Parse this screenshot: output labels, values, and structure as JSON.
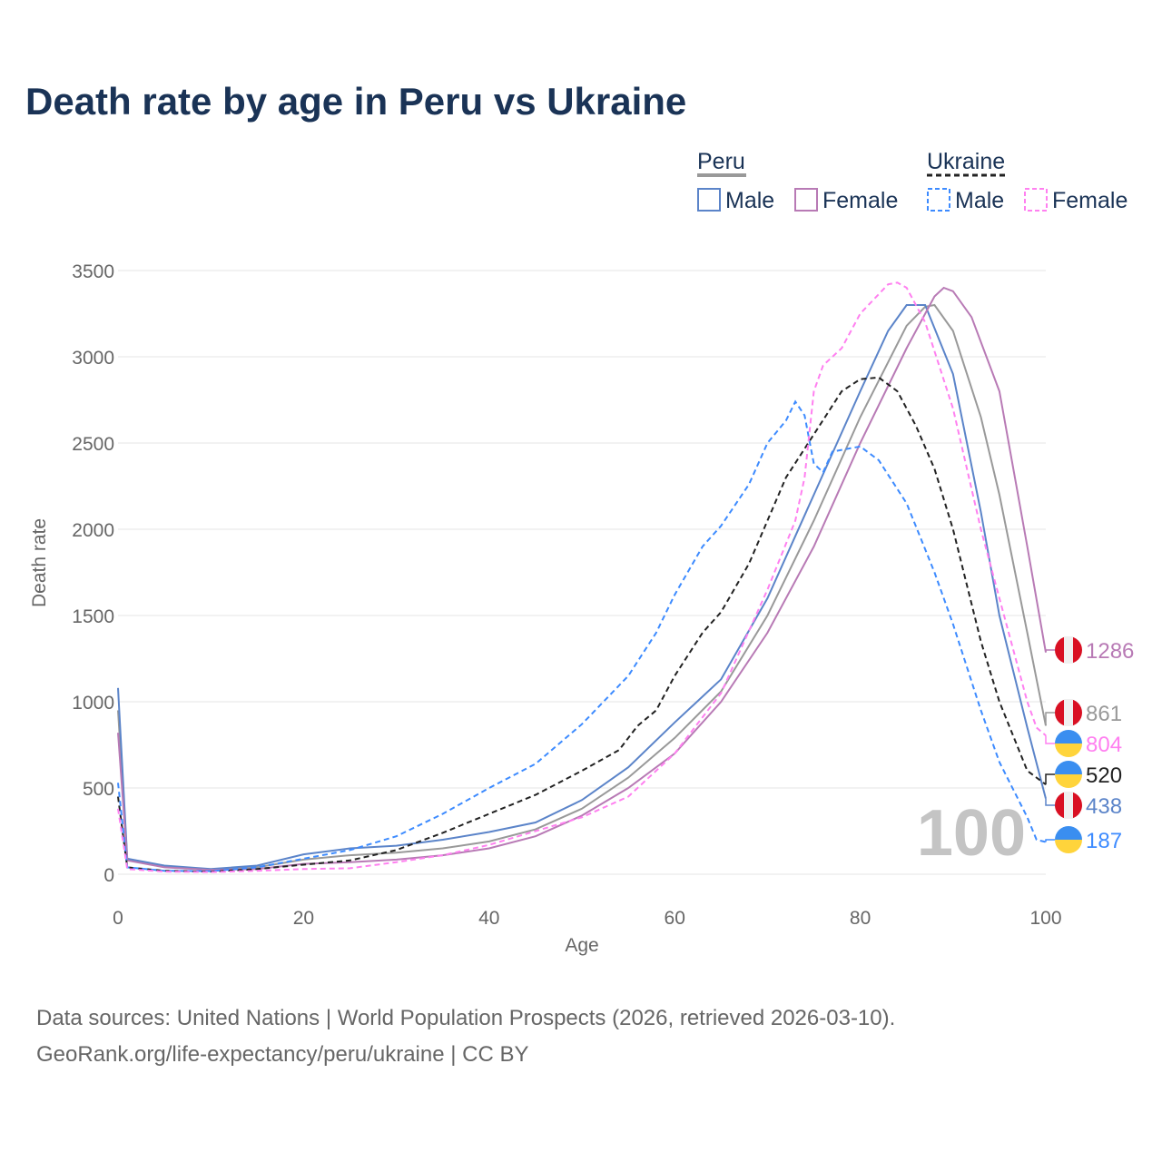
{
  "title": "Death rate by age in Peru vs Ukraine",
  "footer": {
    "line1": "Data sources: United Nations | World Population Prospects (2026, retrieved 2026-03-10).",
    "line2": "GeoRank.org/life-expectancy/peru/ukraine | CC BY"
  },
  "legend": {
    "group1": "Peru",
    "group2": "Ukraine",
    "male": "Male",
    "female": "Female"
  },
  "chart_data": {
    "type": "line",
    "title": "Death rate by age in Peru vs Ukraine",
    "xlabel": "Age",
    "ylabel": "Death rate",
    "xlim": [
      0,
      100
    ],
    "ylim": [
      0,
      3500
    ],
    "xticks": [
      0,
      20,
      40,
      60,
      80,
      100
    ],
    "yticks": [
      0,
      500,
      1000,
      1500,
      2000,
      2500,
      3000,
      3500
    ],
    "annotation": "100",
    "grid": true,
    "series": [
      {
        "name": "Peru",
        "color": "#999999",
        "dash": false,
        "flag": "peru",
        "end_label": "861",
        "x": [
          0,
          1,
          5,
          10,
          15,
          20,
          25,
          30,
          35,
          40,
          45,
          50,
          55,
          60,
          65,
          70,
          75,
          80,
          85,
          87,
          88,
          90,
          93,
          95,
          98,
          100
        ],
        "y": [
          950,
          85,
          45,
          28,
          40,
          85,
          110,
          125,
          150,
          190,
          260,
          380,
          560,
          790,
          1060,
          1500,
          2050,
          2650,
          3180,
          3290,
          3300,
          3150,
          2650,
          2200,
          1400,
          861
        ]
      },
      {
        "name": "Peru Male",
        "color": "#5b84c9",
        "dash": false,
        "flag": "peru",
        "end_label": "438",
        "x": [
          0,
          1,
          5,
          10,
          15,
          20,
          25,
          30,
          35,
          40,
          45,
          50,
          55,
          60,
          65,
          70,
          75,
          80,
          83,
          85,
          87,
          90,
          93,
          95,
          98,
          100
        ],
        "y": [
          1080,
          90,
          50,
          30,
          50,
          115,
          150,
          165,
          200,
          245,
          300,
          430,
          620,
          880,
          1130,
          1600,
          2200,
          2800,
          3150,
          3300,
          3300,
          2900,
          2100,
          1500,
          850,
          438
        ]
      },
      {
        "name": "Peru Female",
        "color": "#b87ab5",
        "dash": false,
        "flag": "peru",
        "end_label": "1286",
        "x": [
          0,
          1,
          5,
          10,
          15,
          20,
          25,
          30,
          35,
          40,
          45,
          50,
          55,
          60,
          65,
          70,
          75,
          80,
          85,
          88,
          89,
          90,
          92,
          95,
          98,
          100
        ],
        "y": [
          820,
          80,
          40,
          25,
          30,
          60,
          70,
          85,
          110,
          150,
          220,
          340,
          500,
          700,
          1000,
          1400,
          1900,
          2500,
          3050,
          3350,
          3400,
          3380,
          3230,
          2800,
          1900,
          1286
        ]
      },
      {
        "name": "Ukraine",
        "color": "#222222",
        "dash": true,
        "flag": "ukraine",
        "end_label": "520",
        "x": [
          0,
          1,
          5,
          10,
          15,
          20,
          25,
          30,
          35,
          40,
          45,
          50,
          54,
          56,
          58,
          60,
          63,
          65,
          68,
          70,
          72,
          75,
          78,
          80,
          82,
          84,
          86,
          88,
          90,
          93,
          95,
          98,
          100
        ],
        "y": [
          450,
          40,
          20,
          15,
          30,
          55,
          80,
          140,
          240,
          350,
          460,
          600,
          720,
          860,
          950,
          1150,
          1400,
          1520,
          1800,
          2050,
          2300,
          2550,
          2800,
          2870,
          2880,
          2800,
          2600,
          2350,
          2000,
          1350,
          1000,
          600,
          520
        ]
      },
      {
        "name": "Ukraine Male",
        "color": "#3d8bff",
        "dash": true,
        "flag": "ukraine",
        "end_label": "187",
        "x": [
          0,
          1,
          5,
          10,
          15,
          20,
          25,
          30,
          35,
          40,
          45,
          50,
          55,
          58,
          60,
          63,
          65,
          68,
          70,
          72,
          73,
          74,
          75,
          76,
          77,
          80,
          82,
          85,
          88,
          90,
          93,
          95,
          98,
          99,
          100
        ],
        "y": [
          530,
          40,
          20,
          18,
          40,
          90,
          140,
          220,
          350,
          500,
          640,
          870,
          1150,
          1400,
          1620,
          1900,
          2020,
          2260,
          2500,
          2630,
          2740,
          2660,
          2380,
          2330,
          2450,
          2480,
          2400,
          2150,
          1750,
          1450,
          950,
          650,
          330,
          200,
          187
        ]
      },
      {
        "name": "Ukraine Female",
        "color": "#ff80f0",
        "dash": true,
        "flag": "ukraine",
        "end_label": "804",
        "x": [
          0,
          1,
          5,
          10,
          15,
          20,
          25,
          30,
          35,
          40,
          45,
          50,
          55,
          60,
          65,
          70,
          73,
          74,
          75,
          76,
          78,
          80,
          83,
          84,
          85,
          87,
          90,
          93,
          95,
          98,
          99,
          100
        ],
        "y": [
          380,
          30,
          15,
          12,
          20,
          30,
          35,
          70,
          110,
          170,
          250,
          330,
          450,
          700,
          1050,
          1650,
          2050,
          2300,
          2800,
          2950,
          3050,
          3250,
          3420,
          3430,
          3400,
          3200,
          2700,
          2000,
          1600,
          1000,
          850,
          804
        ]
      }
    ]
  }
}
